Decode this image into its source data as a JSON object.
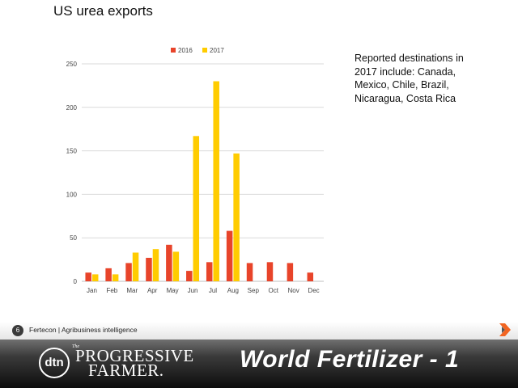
{
  "slide": {
    "title": "US urea exports",
    "note": "Reported destinations in 2017 include: Canada, Mexico, Chile, Brazil, Nicaragua, Costa Rica",
    "page_number": "6",
    "footer_text": "Fertecon | Agribusiness intelligence"
  },
  "branding": {
    "dtn_logo": "dtn",
    "pf_the": "The",
    "pf_line1": "PROGRESSIVE",
    "pf_line2": "FARMER.",
    "banner_title": "World Fertilizer - 1"
  },
  "chart_data": {
    "type": "bar",
    "categories": [
      "Jan",
      "Feb",
      "Mar",
      "Apr",
      "May",
      "Jun",
      "Jul",
      "Aug",
      "Sep",
      "Oct",
      "Nov",
      "Dec"
    ],
    "series": [
      {
        "name": "2016",
        "color": "#e8442a",
        "values": [
          10,
          15,
          21,
          27,
          42,
          12,
          22,
          58,
          21,
          22,
          21,
          10
        ]
      },
      {
        "name": "2017",
        "color": "#ffcc00",
        "values": [
          8,
          8,
          33,
          37,
          34,
          167,
          230,
          147,
          null,
          null,
          null,
          null
        ]
      }
    ],
    "yticks": [
      0,
      50,
      100,
      150,
      200,
      250
    ],
    "ylim": [
      0,
      250
    ],
    "grid": true,
    "legend_position": "top-center",
    "title": "",
    "xlabel": "",
    "ylabel": ""
  },
  "colors": {
    "gridline": "#d9d9d9",
    "axis_text": "#444444",
    "band_dark": "#111111"
  },
  "icons": {
    "corner": "arrow-logo-icon"
  }
}
